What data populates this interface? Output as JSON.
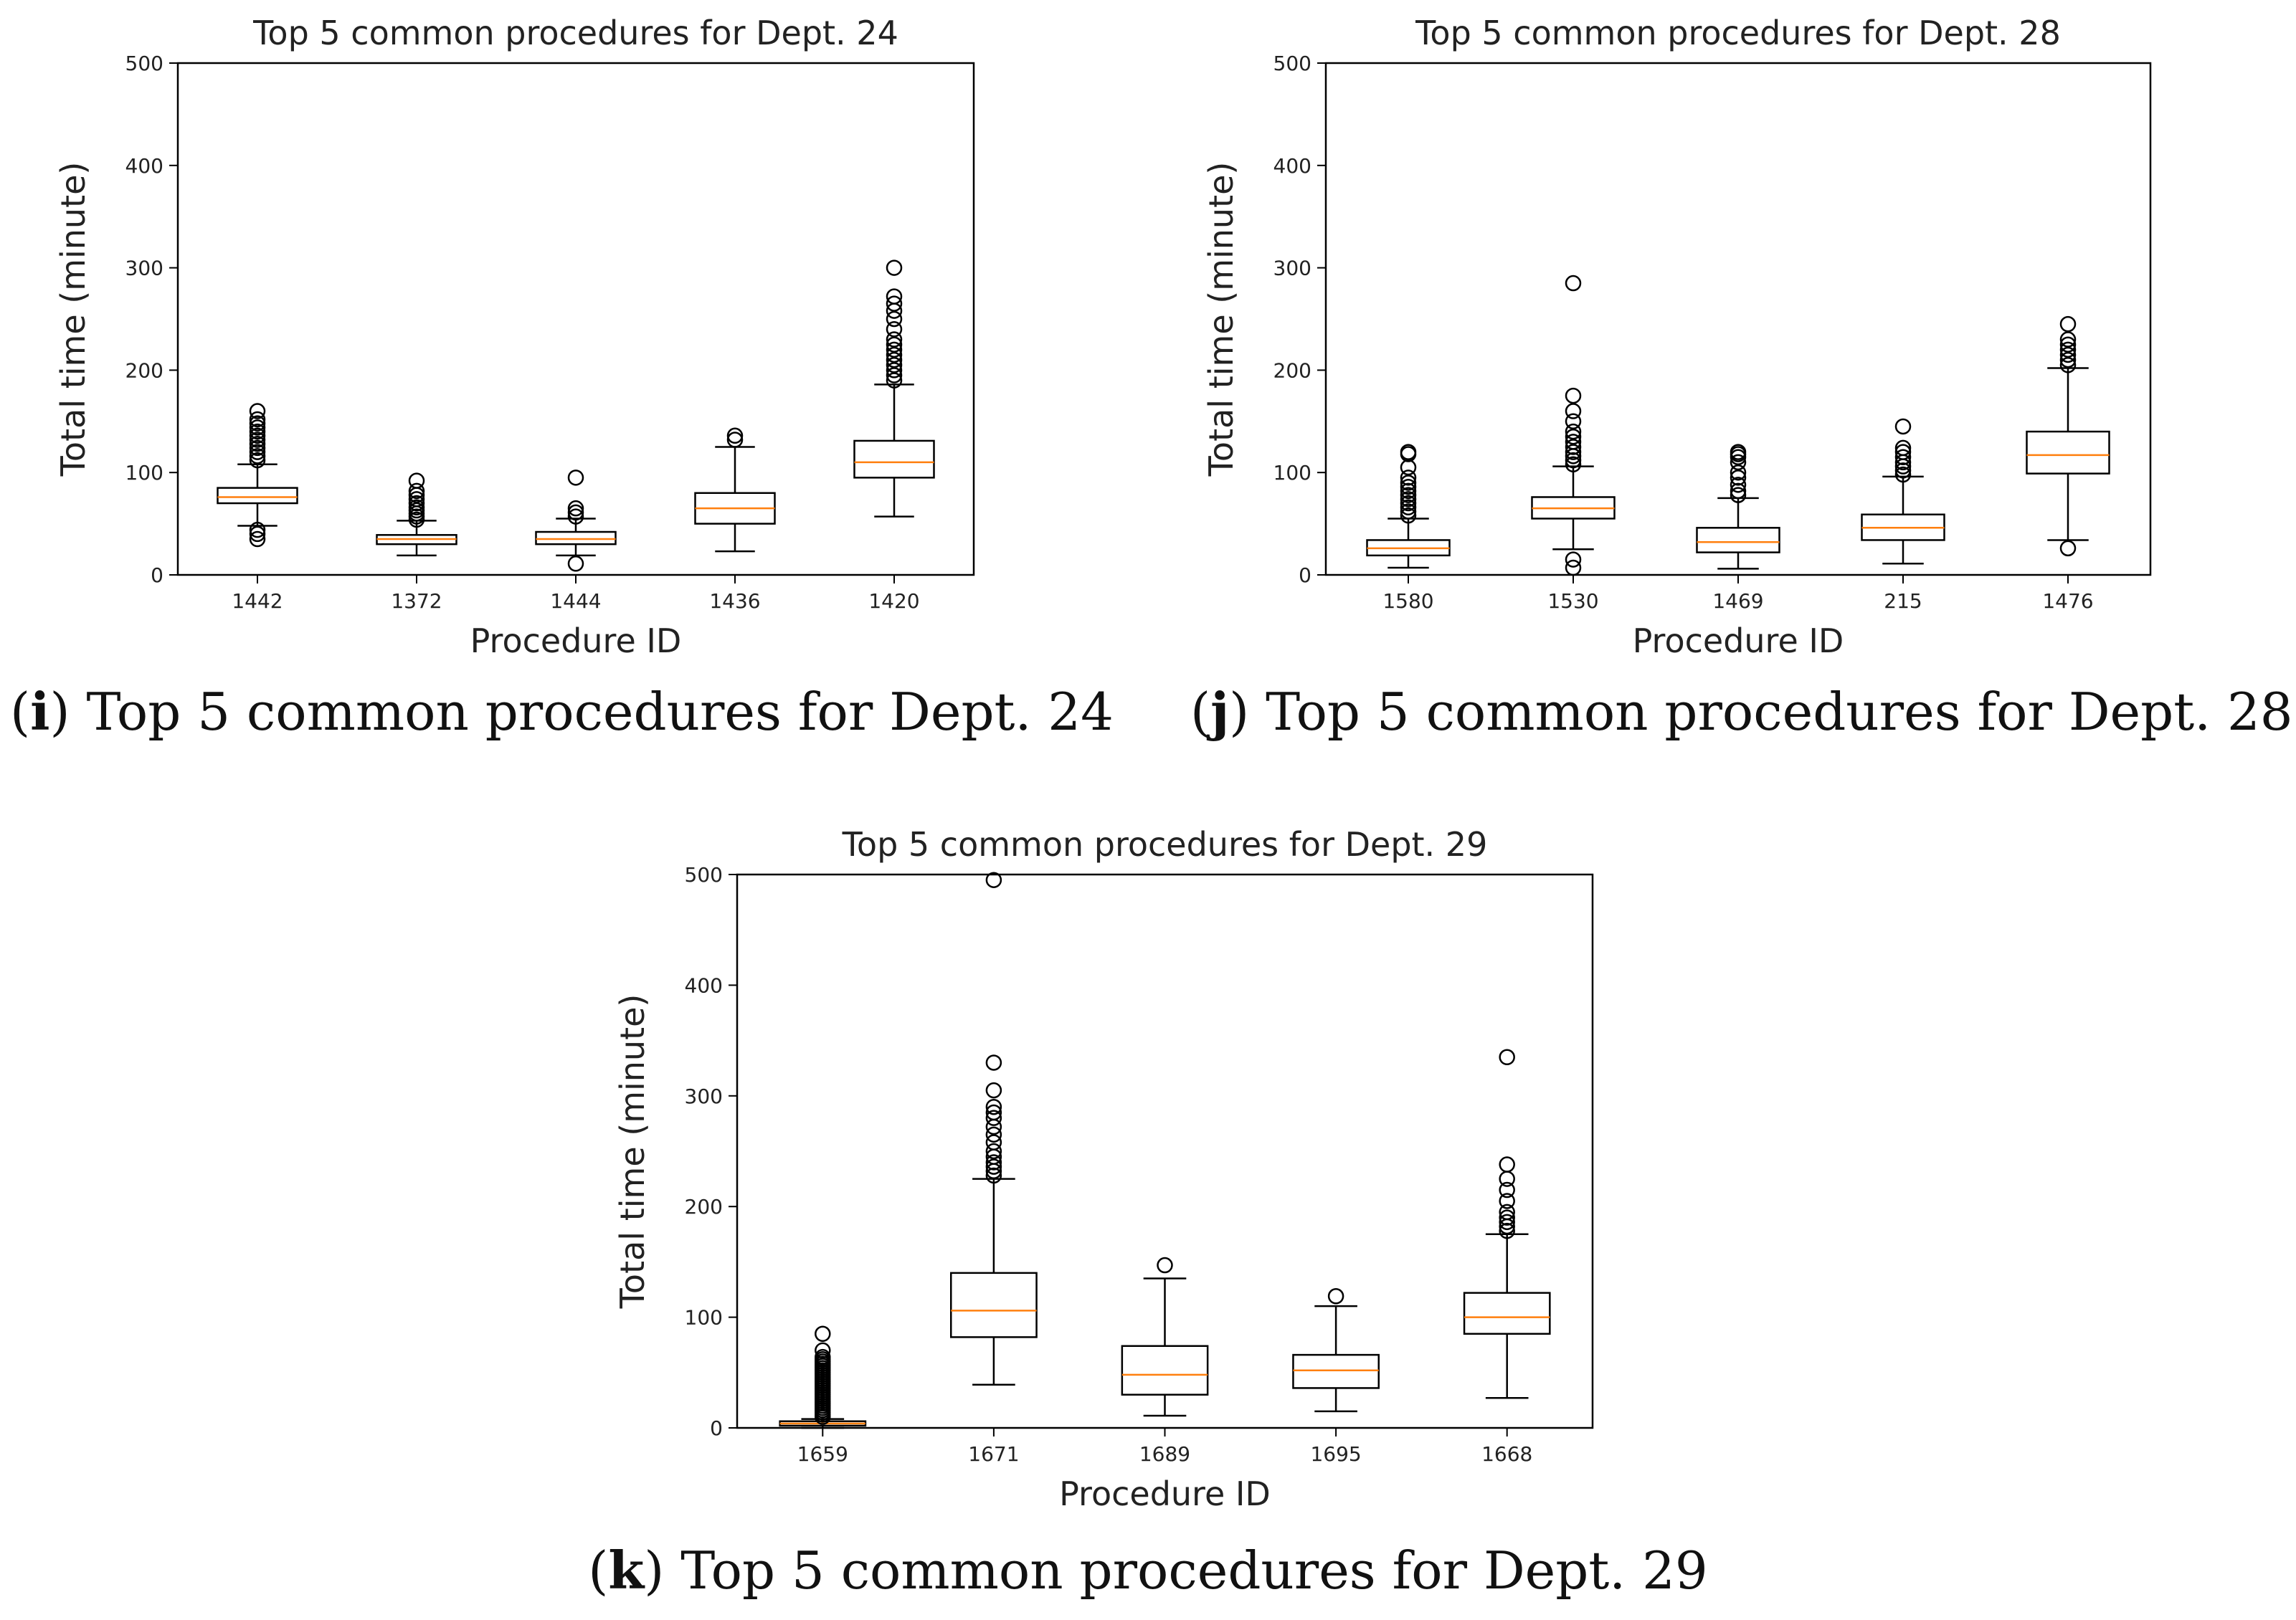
{
  "chart_data": [
    {
      "type": "box",
      "title": "Top 5 common procedures for Dept. 24",
      "xlabel": "Procedure ID",
      "ylabel": "Total time (minute)",
      "ylim": [
        0,
        500
      ],
      "yticks": [
        0,
        100,
        200,
        300,
        400,
        500
      ],
      "categories": [
        "1442",
        "1372",
        "1444",
        "1436",
        "1420"
      ],
      "boxes": [
        {
          "whisker_low": 48,
          "q1": 70,
          "median": 76,
          "q3": 85,
          "whisker_high": 108,
          "outliers": [
            35,
            40,
            44,
            112,
            116,
            120,
            124,
            128,
            132,
            136,
            140,
            144,
            148,
            152,
            160
          ]
        },
        {
          "whisker_low": 19,
          "q1": 30,
          "median": 35,
          "q3": 39,
          "whisker_high": 53,
          "outliers": [
            54,
            57,
            60,
            63,
            66,
            70,
            74,
            78,
            82,
            92
          ]
        },
        {
          "whisker_low": 19,
          "q1": 30,
          "median": 35,
          "q3": 42,
          "whisker_high": 55,
          "outliers": [
            11,
            57,
            61,
            65,
            95
          ]
        },
        {
          "whisker_low": 23,
          "q1": 50,
          "median": 65,
          "q3": 80,
          "whisker_high": 125,
          "outliers": [
            132,
            136
          ]
        },
        {
          "whisker_low": 57,
          "q1": 95,
          "median": 110,
          "q3": 131,
          "whisker_high": 186,
          "outliers": [
            190,
            195,
            200,
            205,
            210,
            215,
            220,
            225,
            230,
            240,
            250,
            258,
            265,
            272,
            300
          ]
        }
      ],
      "caption_label": "i",
      "caption_text": "Top 5 common procedures for Dept. 24"
    },
    {
      "type": "box",
      "title": "Top 5 common procedures for Dept. 28",
      "xlabel": "Procedure ID",
      "ylabel": "Total time (minute)",
      "ylim": [
        0,
        500
      ],
      "yticks": [
        0,
        100,
        200,
        300,
        400,
        500
      ],
      "categories": [
        "1580",
        "1530",
        "1469",
        "215",
        "1476"
      ],
      "boxes": [
        {
          "whisker_low": 7,
          "q1": 19,
          "median": 26,
          "q3": 34,
          "whisker_high": 55,
          "outliers": [
            58,
            62,
            66,
            70,
            74,
            78,
            82,
            86,
            90,
            95,
            105,
            118,
            120
          ]
        },
        {
          "whisker_low": 25,
          "q1": 55,
          "median": 65,
          "q3": 76,
          "whisker_high": 106,
          "outliers": [
            7,
            15,
            108,
            112,
            116,
            120,
            125,
            130,
            135,
            140,
            150,
            160,
            175,
            285
          ]
        },
        {
          "whisker_low": 6,
          "q1": 22,
          "median": 32,
          "q3": 46,
          "whisker_high": 75,
          "outliers": [
            78,
            82,
            88,
            95,
            100,
            110,
            115,
            118,
            120
          ]
        },
        {
          "whisker_low": 11,
          "q1": 34,
          "median": 46,
          "q3": 59,
          "whisker_high": 96,
          "outliers": [
            98,
            102,
            106,
            110,
            115,
            120,
            124,
            145
          ]
        },
        {
          "whisker_low": 34,
          "q1": 99,
          "median": 117,
          "q3": 140,
          "whisker_high": 202,
          "outliers": [
            26,
            205,
            210,
            215,
            220,
            225,
            230,
            245
          ]
        }
      ],
      "caption_label": "j",
      "caption_text": "Top 5 common procedures for Dept. 28"
    },
    {
      "type": "box",
      "title": "Top 5 common procedures for Dept. 29",
      "xlabel": "Procedure ID",
      "ylabel": "Total time (minute)",
      "ylim": [
        0,
        500
      ],
      "yticks": [
        0,
        100,
        200,
        300,
        400,
        500
      ],
      "categories": [
        "1659",
        "1671",
        "1689",
        "1695",
        "1668"
      ],
      "boxes": [
        {
          "whisker_low": 0,
          "q1": 2,
          "median": 4,
          "q3": 6,
          "whisker_high": 8,
          "outliers": [
            10,
            12,
            14,
            16,
            18,
            20,
            22,
            24,
            26,
            28,
            30,
            32,
            34,
            36,
            38,
            40,
            42,
            44,
            46,
            48,
            50,
            52,
            54,
            56,
            58,
            60,
            62,
            64,
            70,
            85
          ]
        },
        {
          "whisker_low": 39,
          "q1": 82,
          "median": 106,
          "q3": 140,
          "whisker_high": 225,
          "outliers": [
            228,
            232,
            236,
            240,
            245,
            250,
            258,
            265,
            272,
            280,
            285,
            290,
            305,
            330,
            495
          ]
        },
        {
          "whisker_low": 11,
          "q1": 30,
          "median": 48,
          "q3": 74,
          "whisker_high": 135,
          "outliers": [
            147
          ]
        },
        {
          "whisker_low": 15,
          "q1": 36,
          "median": 52,
          "q3": 66,
          "whisker_high": 110,
          "outliers": [
            119
          ]
        },
        {
          "whisker_low": 27,
          "q1": 85,
          "median": 100,
          "q3": 122,
          "whisker_high": 175,
          "outliers": [
            178,
            182,
            186,
            190,
            195,
            205,
            215,
            225,
            238,
            335
          ]
        }
      ],
      "caption_label": "k",
      "caption_text": "Top 5 common procedures for Dept. 29"
    }
  ],
  "colors": {
    "median": "#ff7f0e",
    "box_stroke": "#000000",
    "background": "#ffffff"
  }
}
